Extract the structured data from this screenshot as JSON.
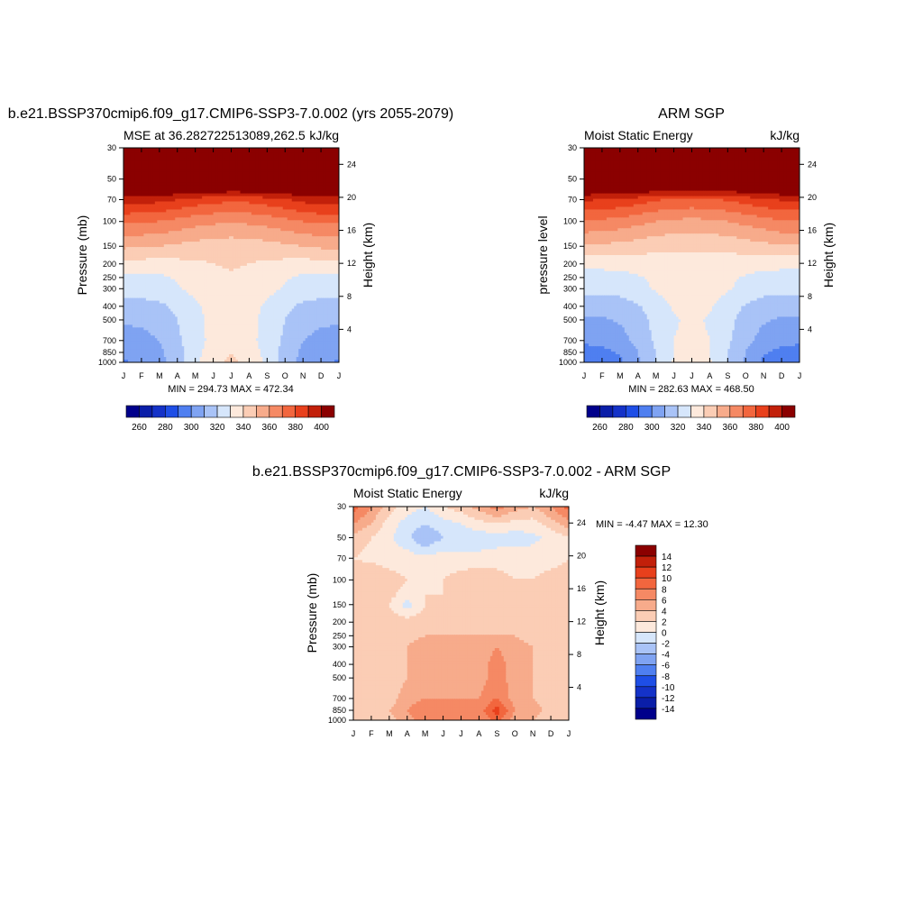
{
  "palette_seq": [
    "#00008b",
    "#0a1ea8",
    "#1432c8",
    "#1e4ee6",
    "#4f7ff0",
    "#7fa3f2",
    "#a9c3f7",
    "#d6e6fb",
    "#fde9dc",
    "#fbcdb5",
    "#f7ab8b",
    "#f58964",
    "#f2663e",
    "#e8401c",
    "#c2200a",
    "#8b0000"
  ],
  "palette_diff": [
    "#00008b",
    "#0a1ea8",
    "#1432c8",
    "#1e4ee6",
    "#4f7ff0",
    "#7fa3f2",
    "#a9c3f7",
    "#d6e6fb",
    "#fde9dc",
    "#fbcdb5",
    "#f7ab8b",
    "#f58964",
    "#f2663e",
    "#e8401c",
    "#c2200a",
    "#8b0000"
  ],
  "chart_data": [
    {
      "type": "heatmap",
      "title": "b.e21.BSSP370cmip6.f09_g17.CMIP6-SSP3-7.0.002 (yrs 2055-2079)",
      "subtitle_left": "MSE at 36.282722513089,262.5",
      "subtitle_right": "kJ/kg",
      "ylabel": "Pressure (mb)",
      "ylabel_right": "Height (km)",
      "stats": "MIN = 294.73 MAX = 472.34",
      "x_ticks": [
        "J",
        "F",
        "M",
        "A",
        "M",
        "J",
        "J",
        "A",
        "S",
        "O",
        "N",
        "D",
        "J"
      ],
      "y_ticks": [
        30,
        50,
        70,
        100,
        150,
        200,
        250,
        300,
        400,
        500,
        700,
        850,
        1000
      ],
      "y_ticks_right": [
        24,
        20,
        16,
        12,
        8,
        4
      ],
      "colorbar_levels": [
        260,
        270,
        280,
        290,
        300,
        310,
        320,
        330,
        340,
        350,
        360,
        370,
        380,
        390,
        400
      ],
      "colorbar_labels": [
        "260",
        "280",
        "300",
        "320",
        "340",
        "360",
        "380",
        "400"
      ],
      "levels": [
        {
          "p": 30,
          "v": [
            430,
            430,
            430,
            430,
            430,
            430,
            430,
            430,
            430,
            430,
            430,
            430,
            430
          ]
        },
        {
          "p": 50,
          "v": [
            430,
            430,
            430,
            430,
            430,
            430,
            430,
            430,
            430,
            430,
            430,
            430,
            430
          ]
        },
        {
          "p": 70,
          "v": [
            395,
            394,
            393,
            390,
            386,
            384,
            382,
            383,
            386,
            389,
            393,
            395,
            395
          ]
        },
        {
          "p": 100,
          "v": [
            372,
            371,
            370,
            367,
            364,
            362,
            361,
            362,
            364,
            367,
            370,
            372,
            372
          ]
        },
        {
          "p": 150,
          "v": [
            352,
            351,
            350,
            348,
            346,
            345,
            344,
            345,
            346,
            348,
            350,
            352,
            352
          ]
        },
        {
          "p": 200,
          "v": [
            336,
            336,
            336,
            337,
            338,
            340,
            341,
            340,
            338,
            337,
            336,
            336,
            336
          ]
        },
        {
          "p": 250,
          "v": [
            327,
            327,
            328,
            331,
            334,
            338,
            339,
            338,
            334,
            331,
            328,
            327,
            327
          ]
        },
        {
          "p": 300,
          "v": [
            325,
            325,
            326,
            329,
            333,
            337,
            338,
            337,
            333,
            329,
            326,
            325,
            325
          ]
        },
        {
          "p": 400,
          "v": [
            315,
            316,
            318,
            322,
            328,
            334,
            336,
            334,
            328,
            322,
            318,
            316,
            315
          ]
        },
        {
          "p": 500,
          "v": [
            311,
            312,
            314,
            320,
            327,
            333,
            335,
            333,
            327,
            320,
            314,
            312,
            311
          ]
        },
        {
          "p": 700,
          "v": [
            306,
            307,
            310,
            318,
            326,
            333,
            336,
            333,
            326,
            318,
            310,
            307,
            306
          ]
        },
        {
          "p": 850,
          "v": [
            302,
            304,
            308,
            316,
            327,
            335,
            340,
            335,
            327,
            316,
            308,
            304,
            302
          ]
        },
        {
          "p": 1000,
          "v": [
            299,
            301,
            306,
            316,
            328,
            337,
            342,
            337,
            328,
            316,
            306,
            301,
            299
          ]
        }
      ]
    },
    {
      "type": "heatmap",
      "title": "ARM SGP",
      "subtitle_left": "Moist Static Energy",
      "subtitle_right": "kJ/kg",
      "ylabel": "pressure level",
      "ylabel_right": "Height (km)",
      "stats": "MIN = 282.63 MAX = 468.50",
      "x_ticks": [
        "J",
        "F",
        "M",
        "A",
        "M",
        "J",
        "J",
        "A",
        "S",
        "O",
        "N",
        "D",
        "J"
      ],
      "y_ticks": [
        30,
        50,
        70,
        100,
        150,
        200,
        250,
        300,
        400,
        500,
        700,
        850,
        1000
      ],
      "y_ticks_right": [
        24,
        20,
        16,
        12,
        8,
        4
      ],
      "colorbar_levels": [
        260,
        270,
        280,
        290,
        300,
        310,
        320,
        330,
        340,
        350,
        360,
        370,
        380,
        390,
        400
      ],
      "colorbar_labels": [
        "260",
        "280",
        "300",
        "320",
        "340",
        "360",
        "380",
        "400"
      ],
      "levels": [
        {
          "p": 30,
          "v": [
            430,
            430,
            430,
            430,
            430,
            430,
            430,
            430,
            430,
            430,
            430,
            430,
            430
          ]
        },
        {
          "p": 50,
          "v": [
            430,
            430,
            430,
            430,
            430,
            430,
            430,
            430,
            430,
            430,
            430,
            430,
            430
          ]
        },
        {
          "p": 70,
          "v": [
            391,
            390,
            388,
            385,
            381,
            379,
            378,
            379,
            381,
            384,
            388,
            391,
            391
          ]
        },
        {
          "p": 100,
          "v": [
            369,
            368,
            366,
            363,
            360,
            358,
            357,
            358,
            360,
            363,
            366,
            369,
            369
          ]
        },
        {
          "p": 150,
          "v": [
            349,
            348,
            347,
            345,
            343,
            342,
            341,
            342,
            343,
            345,
            347,
            349,
            349
          ]
        },
        {
          "p": 200,
          "v": [
            333,
            333,
            333,
            334,
            335,
            337,
            338,
            337,
            335,
            334,
            333,
            333,
            333
          ]
        },
        {
          "p": 250,
          "v": [
            326,
            326,
            327,
            329,
            332,
            335,
            336,
            335,
            332,
            329,
            327,
            326,
            326
          ]
        },
        {
          "p": 300,
          "v": [
            323,
            323,
            324,
            327,
            331,
            335,
            336,
            335,
            331,
            327,
            324,
            323,
            323
          ]
        },
        {
          "p": 400,
          "v": [
            313,
            313,
            315,
            319,
            325,
            331,
            334,
            331,
            325,
            319,
            315,
            313,
            313
          ]
        },
        {
          "p": 500,
          "v": [
            309,
            309,
            311,
            316,
            323,
            329,
            332,
            329,
            323,
            316,
            311,
            309,
            309
          ]
        },
        {
          "p": 700,
          "v": [
            302,
            303,
            306,
            313,
            322,
            330,
            333,
            330,
            322,
            313,
            306,
            303,
            302
          ]
        },
        {
          "p": 850,
          "v": [
            296,
            297,
            301,
            310,
            320,
            330,
            336,
            330,
            320,
            310,
            301,
            297,
            296
          ]
        },
        {
          "p": 1000,
          "v": [
            291,
            293,
            298,
            308,
            320,
            331,
            338,
            331,
            320,
            308,
            298,
            293,
            291
          ]
        }
      ]
    },
    {
      "type": "heatmap",
      "title": "b.e21.BSSP370cmip6.f09_g17.CMIP6-SSP3-7.0.002 - ARM SGP",
      "subtitle_left": "Moist Static Energy",
      "subtitle_right": "kJ/kg",
      "ylabel": "Pressure (mb)",
      "ylabel_right": "Height (km)",
      "stats": "MIN =  -4.47 MAX =  12.30",
      "x_ticks": [
        "J",
        "F",
        "M",
        "A",
        "M",
        "J",
        "J",
        "A",
        "S",
        "O",
        "N",
        "D",
        "J"
      ],
      "y_ticks": [
        30,
        50,
        70,
        100,
        150,
        200,
        250,
        300,
        400,
        500,
        700,
        850,
        1000
      ],
      "y_ticks_right": [
        24,
        20,
        16,
        12,
        8,
        4
      ],
      "colorbar_levels": [
        -14,
        -12,
        -10,
        -8,
        -6,
        -4,
        -2,
        0,
        2,
        4,
        6,
        8,
        10,
        12,
        14
      ],
      "colorbar_labels": [
        "-14",
        "-12",
        "-10",
        "-8",
        "-6",
        "-4",
        "-2",
        "0",
        "2",
        "4",
        "6",
        "8",
        "10",
        "12",
        "14"
      ],
      "levels": [
        {
          "p": 30,
          "v": [
            9,
            6,
            3,
            1,
            0,
            2,
            3,
            5,
            7,
            5,
            4,
            6,
            9
          ]
        },
        {
          "p": 40,
          "v": [
            6,
            4,
            1,
            -1,
            -2,
            -1,
            0,
            1,
            2,
            1,
            1,
            3,
            5
          ]
        },
        {
          "p": 50,
          "v": [
            3,
            2,
            0.5,
            -1.5,
            -4,
            -2,
            -1,
            -1,
            -1,
            -1,
            -0.5,
            0.5,
            2
          ]
        },
        {
          "p": 70,
          "v": [
            2,
            1.5,
            1,
            1,
            0.5,
            1,
            0.5,
            0.5,
            1,
            1,
            1,
            1,
            2
          ]
        },
        {
          "p": 100,
          "v": [
            3,
            4,
            3,
            2,
            1.5,
            2,
            3,
            4,
            3,
            2,
            2,
            3,
            3
          ]
        },
        {
          "p": 130,
          "v": [
            3,
            3,
            2.5,
            1,
            2,
            2,
            3,
            3,
            3,
            2,
            2,
            2.5,
            3
          ]
        },
        {
          "p": 150,
          "v": [
            3,
            2.5,
            2,
            -1,
            2,
            2,
            2.5,
            3,
            2.5,
            2,
            2,
            2.5,
            3
          ]
        },
        {
          "p": 200,
          "v": [
            3,
            3,
            3,
            3,
            3,
            3,
            3,
            3,
            3,
            3,
            3,
            3,
            3
          ]
        },
        {
          "p": 250,
          "v": [
            3,
            3,
            3,
            3.5,
            4,
            4,
            4,
            4,
            4,
            4,
            3,
            3,
            3
          ]
        },
        {
          "p": 300,
          "v": [
            3,
            3,
            3,
            4,
            5,
            5,
            5,
            5,
            6,
            5,
            4,
            3,
            3
          ]
        },
        {
          "p": 400,
          "v": [
            3,
            3,
            3,
            4,
            5,
            5,
            5,
            5,
            7,
            5,
            4,
            3,
            3
          ]
        },
        {
          "p": 500,
          "v": [
            3,
            3,
            3,
            4,
            5,
            5,
            5,
            5,
            7,
            5,
            4,
            3,
            3
          ]
        },
        {
          "p": 700,
          "v": [
            3,
            3,
            3,
            5,
            6,
            6,
            6,
            6,
            8,
            5,
            4,
            3,
            3
          ]
        },
        {
          "p": 850,
          "v": [
            2,
            3,
            4,
            6,
            8,
            7,
            7,
            7,
            11,
            6,
            5,
            3,
            2
          ]
        },
        {
          "p": 1000,
          "v": [
            3,
            3,
            3,
            5,
            7,
            6,
            6,
            6,
            9,
            5,
            4,
            3,
            3
          ]
        }
      ]
    }
  ]
}
